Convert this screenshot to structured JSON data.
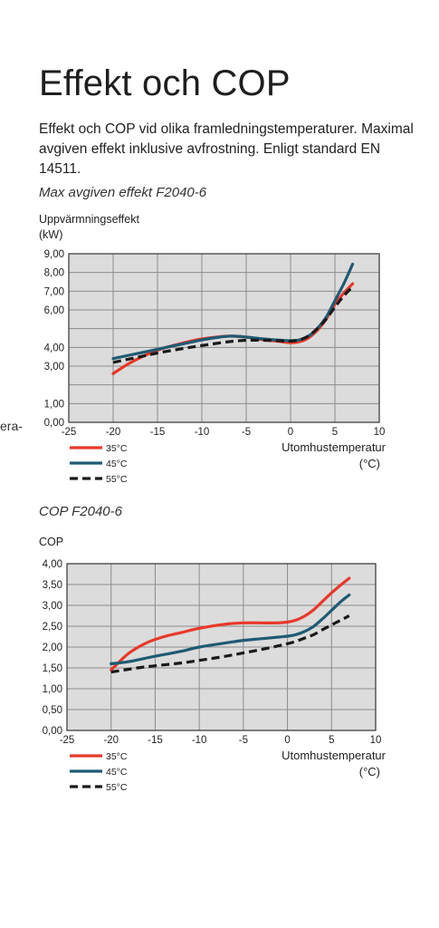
{
  "title": "Effekt och COP",
  "intro": "Effekt och COP vid olika framledningstemperaturer. Maximal avgiven effekt inklusive avfrostning. Enligt standard EN 14511.",
  "edge_text": "era-",
  "colors": {
    "c35": "#e8382a",
    "c45": "#1f5a73",
    "c55": "#1a1a1a",
    "plot_bg": "#dcdcdc",
    "grid": "#8c8c8c"
  },
  "chart_data": [
    {
      "type": "line",
      "title": "Max avgiven effekt F2040-6",
      "ylabel": [
        "Uppvärmningseffekt",
        "(kW)"
      ],
      "xlabel": [
        "Utomhustemperatur",
        "(°C)"
      ],
      "xlim": [
        -25,
        10
      ],
      "ylim": [
        0,
        9
      ],
      "xticks": [
        -25,
        -20,
        -15,
        -10,
        -5,
        0,
        5,
        10
      ],
      "xtick_labels": [
        "-25",
        "-20",
        "-15",
        "-10",
        "-5",
        "0",
        "5",
        "10"
      ],
      "yticks": [
        0,
        1,
        2,
        3,
        4,
        5,
        6,
        7,
        8,
        9
      ],
      "ytick_labels": [
        "0,00",
        "1,00",
        "3,00",
        "4,00",
        "6,00",
        "7,00",
        "8,00",
        "9,00"
      ],
      "ytick_label_values": [
        0,
        1,
        3,
        4,
        6,
        7,
        8,
        9
      ],
      "grid": true,
      "legend_position": "bottom-left",
      "series": [
        {
          "name": "35°C",
          "color": "#e8382a",
          "dash": false,
          "x": [
            -20,
            -18,
            -15,
            -12,
            -10,
            -7,
            -5,
            -3,
            -1,
            0,
            1,
            2,
            3,
            4,
            5,
            6,
            7
          ],
          "y": [
            2.6,
            3.2,
            3.85,
            4.25,
            4.45,
            4.6,
            4.55,
            4.4,
            4.3,
            4.25,
            4.3,
            4.5,
            4.9,
            5.5,
            6.3,
            6.9,
            7.4
          ]
        },
        {
          "name": "45°C",
          "color": "#1f5a73",
          "dash": false,
          "x": [
            -20,
            -18,
            -15,
            -12,
            -10,
            -8,
            -6.5,
            -5,
            -3,
            -1,
            0,
            1,
            2,
            3,
            4,
            5,
            6,
            7
          ],
          "y": [
            3.4,
            3.6,
            3.9,
            4.2,
            4.4,
            4.55,
            4.6,
            4.55,
            4.45,
            4.38,
            4.36,
            4.4,
            4.6,
            5.0,
            5.6,
            6.5,
            7.4,
            8.45
          ]
        },
        {
          "name": "55°C",
          "color": "#1a1a1a",
          "dash": true,
          "x": [
            -20,
            -17,
            -15,
            -12,
            -10,
            -7,
            -5,
            -3,
            -1,
            0,
            1,
            2,
            3,
            4,
            5,
            6,
            7
          ],
          "y": [
            3.2,
            3.5,
            3.7,
            3.95,
            4.1,
            4.3,
            4.38,
            4.38,
            4.35,
            4.33,
            4.4,
            4.6,
            5.0,
            5.5,
            6.15,
            6.75,
            7.25
          ]
        }
      ]
    },
    {
      "type": "line",
      "title": "COP F2040-6",
      "ylabel": [
        "COP"
      ],
      "xlabel": [
        "Utomhustemperatur",
        "(°C)"
      ],
      "xlim": [
        -25,
        10
      ],
      "ylim": [
        0,
        4
      ],
      "xticks": [
        -25,
        -20,
        -15,
        -10,
        -5,
        0,
        5,
        10
      ],
      "xtick_labels": [
        "-25",
        "-20",
        "-15",
        "-10",
        "-5",
        "0",
        "5",
        "10"
      ],
      "yticks": [
        0,
        0.5,
        1,
        1.5,
        2,
        2.5,
        3,
        3.5,
        4
      ],
      "ytick_labels": [
        "0,00",
        "0,50",
        "1,00",
        "1,50",
        "2,00",
        "2,50",
        "3,00",
        "3,50",
        "4,00"
      ],
      "ytick_label_values": [
        0,
        0.5,
        1,
        1.5,
        2,
        2.5,
        3,
        3.5,
        4
      ],
      "grid": true,
      "legend_position": "bottom-left",
      "series": [
        {
          "name": "35°C",
          "color": "#e8382a",
          "dash": false,
          "x": [
            -20,
            -18,
            -16,
            -14,
            -12,
            -10,
            -7,
            -5,
            -3,
            -1,
            0,
            1,
            2,
            3,
            4,
            5,
            6,
            7
          ],
          "y": [
            1.45,
            1.85,
            2.1,
            2.25,
            2.35,
            2.45,
            2.55,
            2.58,
            2.58,
            2.58,
            2.6,
            2.65,
            2.75,
            2.9,
            3.1,
            3.3,
            3.48,
            3.65
          ]
        },
        {
          "name": "45°C",
          "color": "#1f5a73",
          "dash": false,
          "x": [
            -20,
            -18,
            -15,
            -12,
            -10,
            -7,
            -5,
            -3,
            -1,
            0,
            1,
            2,
            3,
            4,
            5,
            6,
            7
          ],
          "y": [
            1.6,
            1.65,
            1.78,
            1.9,
            2.0,
            2.1,
            2.16,
            2.2,
            2.24,
            2.26,
            2.3,
            2.38,
            2.5,
            2.68,
            2.88,
            3.08,
            3.25
          ]
        },
        {
          "name": "55°C",
          "color": "#1a1a1a",
          "dash": true,
          "x": [
            -20,
            -17,
            -15,
            -12,
            -10,
            -7,
            -5,
            -3,
            -1,
            0,
            1,
            2,
            3,
            4,
            5,
            6,
            7
          ],
          "y": [
            1.4,
            1.5,
            1.55,
            1.62,
            1.68,
            1.78,
            1.86,
            1.94,
            2.03,
            2.08,
            2.14,
            2.22,
            2.3,
            2.42,
            2.53,
            2.64,
            2.75
          ]
        }
      ]
    }
  ]
}
